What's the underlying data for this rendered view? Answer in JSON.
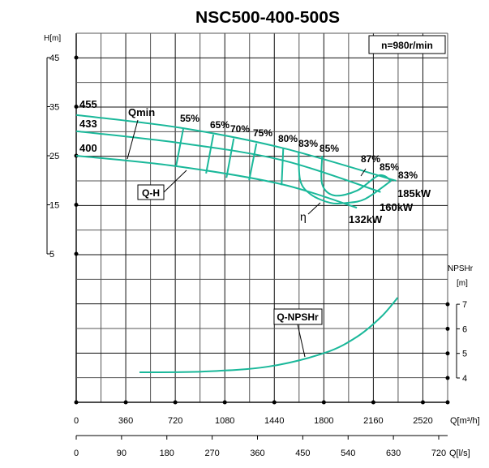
{
  "chart_data": {
    "type": "line",
    "title": "NSC500-400-500S",
    "speed_label": "n=980r/min",
    "curve_color": "#1ab89a",
    "grid": true,
    "x_axis": {
      "label": "Q[m³/h]",
      "range": [
        0,
        2700
      ],
      "ticks": [
        0,
        360,
        720,
        1080,
        1440,
        1800,
        2160,
        2520
      ]
    },
    "x2_axis": {
      "label": "Q[l/s]",
      "range": [
        0,
        750
      ],
      "ticks": [
        0,
        90,
        180,
        270,
        360,
        450,
        540,
        630,
        720
      ]
    },
    "h_axis": {
      "label": "H[m]",
      "range": [
        0,
        50
      ],
      "ticks": [
        45,
        35,
        25,
        15,
        5
      ]
    },
    "npsh_axis": {
      "label": "NPSHr",
      "unit": "[m]",
      "range": [
        3,
        8
      ],
      "ticks": [
        7,
        6,
        5,
        4
      ]
    },
    "head_curves": [
      {
        "name": "455",
        "power": "185kW",
        "points": [
          [
            0,
            33.3
          ],
          [
            779,
            30.6
          ],
          [
            1511,
            26.5
          ],
          [
            2325,
            19.9
          ]
        ]
      },
      {
        "name": "433",
        "power": "160kW",
        "points": [
          [
            0,
            30.0
          ],
          [
            779,
            27.5
          ],
          [
            1511,
            24.0
          ],
          [
            2213,
            17.6
          ]
        ]
      },
      {
        "name": "400",
        "power": "132kW",
        "points": [
          [
            0,
            25.0
          ],
          [
            720,
            22.9
          ],
          [
            1493,
            19.2
          ],
          [
            2040,
            14.4
          ]
        ]
      }
    ],
    "efficiency_lines": [
      {
        "label": "55%",
        "points": [
          [
            779,
            30.6
          ],
          [
            726,
            22.9
          ]
        ]
      },
      {
        "label": "65%",
        "points": [
          [
            997,
            29.3
          ],
          [
            944,
            21.4
          ]
        ]
      },
      {
        "label": "70%",
        "points": [
          [
            1145,
            28.5
          ],
          [
            1092,
            20.5
          ]
        ]
      },
      {
        "label": "75%",
        "points": [
          [
            1310,
            27.5
          ],
          [
            1257,
            20.0
          ]
        ]
      },
      {
        "label": "80%",
        "points": [
          [
            1505,
            26.5
          ],
          [
            1493,
            19.0
          ]
        ]
      },
      {
        "label": "83%",
        "points": [
          [
            1617,
            25.8
          ],
          [
            1629,
            19.9
          ],
          [
            1706,
            17.1
          ],
          [
            1847,
            15.4
          ],
          [
            1965,
            15.4
          ],
          [
            2101,
            16.2
          ],
          [
            2290,
            19.9
          ]
        ]
      },
      {
        "label": "85%",
        "points": [
          [
            1788,
            25.0
          ],
          [
            1788,
            19.2
          ],
          [
            1877,
            16.9
          ],
          [
            2042,
            17.9
          ],
          [
            2201,
            21.0
          ],
          [
            2290,
            19.9
          ]
        ]
      }
    ],
    "efficiency_labels_right": [
      "87%",
      "85%",
      "83%"
    ],
    "npsh_curve": {
      "name": "Q-NPSHr",
      "points": [
        [
          460,
          4.23
        ],
        [
          921,
          4.26
        ],
        [
          1393,
          4.46
        ],
        [
          1806,
          5.02
        ],
        [
          2042,
          5.68
        ],
        [
          2219,
          6.5
        ],
        [
          2337,
          7.27
        ]
      ]
    },
    "annotations": {
      "qmin": "Qmin",
      "qh": "Q-H",
      "eta": "η"
    }
  }
}
